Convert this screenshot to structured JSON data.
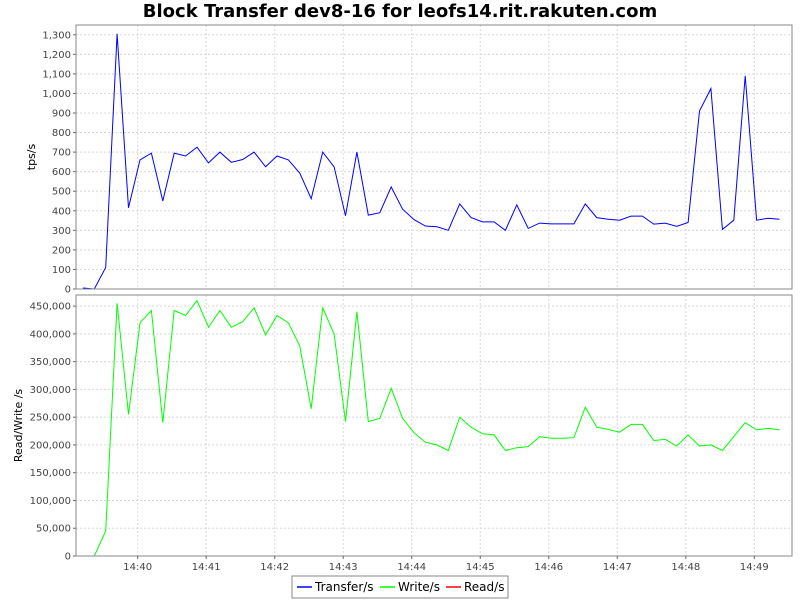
{
  "chart_data": {
    "type": "line",
    "title": "Block Transfer dev8-16 for leofs14.rit.rakuten.com",
    "x_tick_labels": [
      "14:40",
      "14:41",
      "14:42",
      "14:43",
      "14:44",
      "14:45",
      "14:46",
      "14:47",
      "14:48",
      "14:49"
    ],
    "x_tick_minutes": [
      40,
      41,
      42,
      43,
      44,
      45,
      46,
      47,
      48,
      49
    ],
    "x_range_minutes": [
      39.1,
      49.55
    ],
    "x_sample_start_minute": 39.2,
    "x_sample_step_minutes": 0.16667,
    "legend": {
      "placement": "bottom-center",
      "entries": [
        {
          "label": "Transfer/s",
          "color": "#0000ff"
        },
        {
          "label": "Write/s",
          "color": "#00ff00"
        },
        {
          "label": "Read/s",
          "color": "#ff0000"
        }
      ]
    },
    "grid": true,
    "panels": [
      {
        "ylabel": "tps/s",
        "ylim": [
          0,
          1350
        ],
        "yticks": [
          0,
          100,
          200,
          300,
          400,
          500,
          600,
          700,
          800,
          900,
          1000,
          1100,
          1200,
          1300
        ],
        "ytick_labels": [
          "0",
          "100",
          "200",
          "300",
          "400",
          "500",
          "600",
          "700",
          "800",
          "900",
          "1,000",
          "1,100",
          "1,200",
          "1,300"
        ],
        "series": [
          {
            "name": "Transfer/s",
            "color": "#0000ff",
            "values": [
              5,
              0,
              110,
              1305,
              415,
              660,
              695,
              450,
              695,
              680,
              725,
              645,
              700,
              648,
              662,
              700,
              625,
              680,
              660,
              592,
              462,
              700,
              625,
              375,
              700,
              378,
              390,
              522,
              408,
              355,
              322,
              318,
              300,
              435,
              365,
              343,
              343,
              300,
              430,
              310,
              337,
              333,
              333,
              333,
              435,
              365,
              357,
              352,
              373,
              373,
              332,
              337,
              320,
              340,
              910,
              1025,
              305,
              352,
              1090,
              352,
              362,
              357
            ]
          }
        ]
      },
      {
        "ylabel": "Read/Write /s",
        "ylim": [
          0,
          470000
        ],
        "yticks": [
          0,
          50000,
          100000,
          150000,
          200000,
          250000,
          300000,
          350000,
          400000,
          450000
        ],
        "ytick_labels": [
          "0",
          "50,000",
          "100,000",
          "150,000",
          "200,000",
          "250,000",
          "300,000",
          "350,000",
          "400,000",
          "450,000"
        ],
        "series": [
          {
            "name": "Write/s",
            "color": "#00ff00",
            "values": [
              null,
              0,
              45000,
              455000,
              255000,
              420000,
              442000,
              240000,
              442000,
              433000,
              460000,
              412000,
              442000,
              412000,
              422000,
              447000,
              398000,
              433000,
              420000,
              378000,
              265000,
              447000,
              400000,
              242000,
              440000,
              242000,
              248000,
              302000,
              248000,
              222000,
              205000,
              200000,
              190000,
              250000,
              232000,
              220000,
              218000,
              190000,
              195000,
              197000,
              215000,
              212000,
              212000,
              213000,
              268000,
              232000,
              228000,
              223000,
              237000,
              237000,
              208000,
              210000,
              198000,
              218000,
              198000,
              200000,
              190000,
              215000,
              240000,
              227000,
              230000,
              227000
            ]
          },
          {
            "name": "Read/s",
            "color": "#ff0000",
            "values": [
              0,
              0,
              0,
              0,
              0,
              0,
              0,
              0,
              0,
              0,
              0,
              0,
              0,
              0,
              0,
              0,
              0,
              0,
              0,
              0,
              0,
              0,
              0,
              0,
              0,
              0,
              0,
              0,
              0,
              0,
              0,
              0,
              0,
              0,
              0,
              0,
              0,
              0,
              0,
              0,
              0,
              0,
              0,
              0,
              0,
              0,
              0,
              0,
              0,
              0,
              0,
              0,
              0,
              0,
              0,
              0,
              0,
              0,
              0,
              0,
              0,
              0
            ]
          }
        ]
      }
    ]
  }
}
